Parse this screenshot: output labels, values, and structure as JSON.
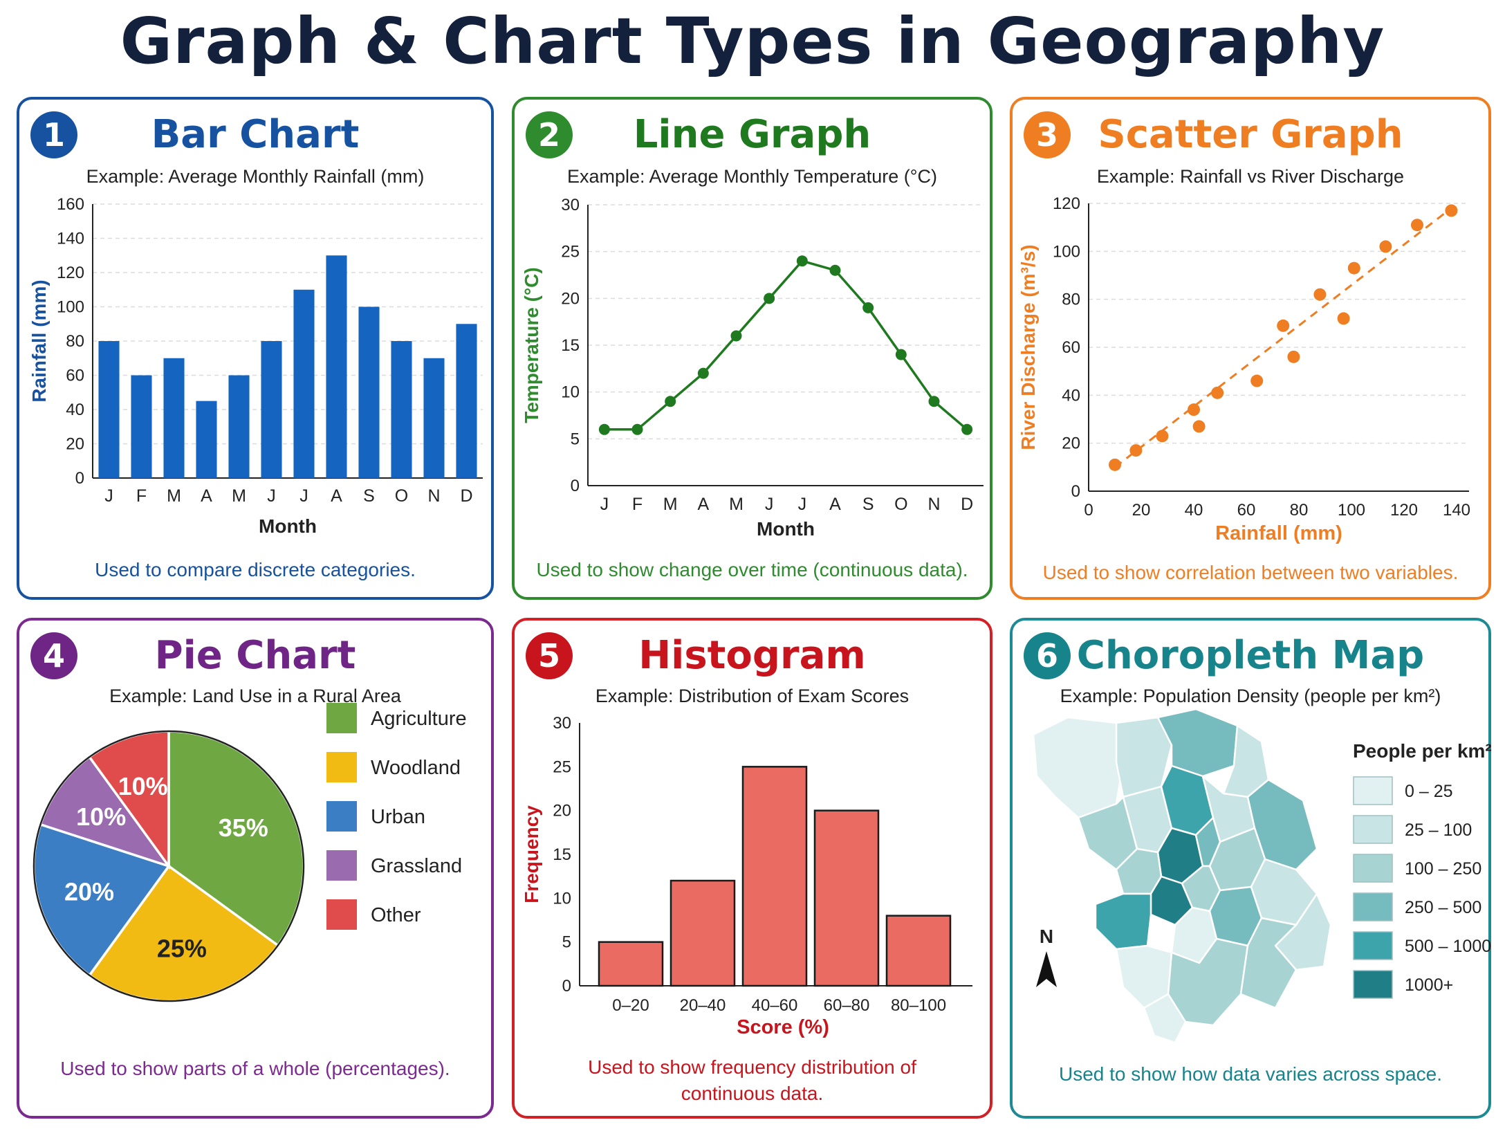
{
  "page_title": "Graph & Chart Types in Geography",
  "colors": {
    "bar": "#1565c0",
    "line": "#2e8b2e",
    "scatter": "#ef7d22",
    "pie": "#7b2a8f",
    "histogram": "#d32027",
    "choropleth": "#1d8a94"
  },
  "panels": {
    "bar": {
      "number": "1",
      "title": "Bar Chart",
      "subtitle": "Example: Average Monthly Rainfall (mm)",
      "description": "Used to compare discrete categories."
    },
    "line": {
      "number": "2",
      "title": "Line Graph",
      "subtitle": "Example: Average Monthly Temperature (°C)",
      "description": "Used to show change over time (continuous data)."
    },
    "scatter": {
      "number": "3",
      "title": "Scatter Graph",
      "subtitle": "Example: Rainfall vs River Discharge",
      "description": "Used to show correlation between two variables."
    },
    "pie": {
      "number": "4",
      "title": "Pie Chart",
      "subtitle": "Example: Land Use in a Rural Area",
      "description": "Used to show parts of a whole (percentages)."
    },
    "histogram": {
      "number": "5",
      "title": "Histogram",
      "subtitle": "Example: Distribution of Exam Scores",
      "description_line1": "Used to show frequency distribution of",
      "description_line2": "continuous data."
    },
    "choropleth": {
      "number": "6",
      "title": "Choropleth Map",
      "subtitle": "Example: Population Density (people per km²)",
      "description": "Used to show how data varies across space.",
      "north_label": "N",
      "north_icon": "north-arrow-icon"
    }
  },
  "chart_data": [
    {
      "type": "bar",
      "categories": [
        "J",
        "F",
        "M",
        "A",
        "M",
        "J",
        "J",
        "A",
        "S",
        "O",
        "N",
        "D"
      ],
      "values": [
        80,
        60,
        70,
        45,
        60,
        80,
        110,
        130,
        100,
        80,
        70,
        90
      ],
      "xlabel": "Month",
      "ylabel": "Rainfall (mm)",
      "ylim": [
        0,
        160
      ],
      "yticks": [
        0,
        20,
        40,
        60,
        80,
        100,
        120,
        140,
        160
      ],
      "grid": true
    },
    {
      "type": "line",
      "categories": [
        "J",
        "F",
        "M",
        "A",
        "M",
        "J",
        "J",
        "A",
        "S",
        "O",
        "N",
        "D"
      ],
      "values": [
        6,
        6,
        9,
        12,
        16,
        20,
        24,
        23,
        19,
        14,
        9,
        6
      ],
      "xlabel": "Month",
      "ylabel": "Temperature (°C)",
      "ylim": [
        0,
        30
      ],
      "yticks": [
        0,
        5,
        10,
        15,
        20,
        25,
        30
      ],
      "grid": true
    },
    {
      "type": "scatter",
      "points": [
        [
          10,
          11
        ],
        [
          18,
          17
        ],
        [
          28,
          23
        ],
        [
          40,
          34
        ],
        [
          42,
          27
        ],
        [
          49,
          41
        ],
        [
          64,
          46
        ],
        [
          74,
          69
        ],
        [
          78,
          56
        ],
        [
          88,
          82
        ],
        [
          97,
          72
        ],
        [
          101,
          93
        ],
        [
          113,
          102
        ],
        [
          125,
          111
        ],
        [
          138,
          117
        ]
      ],
      "trendline": [
        [
          10,
          10
        ],
        [
          138,
          118
        ]
      ],
      "xlabel": "Rainfall (mm)",
      "ylabel": "River Discharge (m³/s)",
      "xlim": [
        0,
        140
      ],
      "ylim": [
        0,
        120
      ],
      "xticks": [
        0,
        20,
        40,
        60,
        80,
        100,
        120,
        140
      ],
      "yticks": [
        0,
        20,
        40,
        60,
        80,
        100,
        120
      ],
      "grid": true
    },
    {
      "type": "pie",
      "slices": [
        {
          "label": "Agriculture",
          "value": 35,
          "display": "35%",
          "color": "#6fa843"
        },
        {
          "label": "Woodland",
          "value": 25,
          "display": "25%",
          "color": "#f2bb14"
        },
        {
          "label": "Urban",
          "value": 20,
          "display": "20%",
          "color": "#3c7ec4"
        },
        {
          "label": "Grassland",
          "value": 10,
          "display": "10%",
          "color": "#9b6bb0"
        },
        {
          "label": "Other",
          "value": 10,
          "display": "10%",
          "color": "#e04b4b"
        }
      ],
      "legend": "right"
    },
    {
      "type": "bar",
      "subtype": "histogram",
      "categories": [
        "0–20",
        "20–40",
        "40–60",
        "60–80",
        "80–100"
      ],
      "values": [
        5,
        12,
        25,
        20,
        8
      ],
      "xlabel": "Score (%)",
      "ylabel": "Frequency",
      "ylim": [
        0,
        30
      ],
      "yticks": [
        0,
        5,
        10,
        15,
        20,
        25,
        30
      ]
    },
    {
      "type": "heatmap",
      "subtype": "choropleth",
      "legend_title": "People per km²",
      "classes": [
        {
          "label": "0 – 25",
          "color": "#e1f0f0"
        },
        {
          "label": "25 – 100",
          "color": "#c8e4e4"
        },
        {
          "label": "100 – 250",
          "color": "#a8d3d3"
        },
        {
          "label": "250 – 500",
          "color": "#76bcbf"
        },
        {
          "label": "500 – 1000",
          "color": "#3ea4ab"
        },
        {
          "label": "1000+",
          "color": "#1f7e86"
        }
      ],
      "legend": "right"
    }
  ]
}
